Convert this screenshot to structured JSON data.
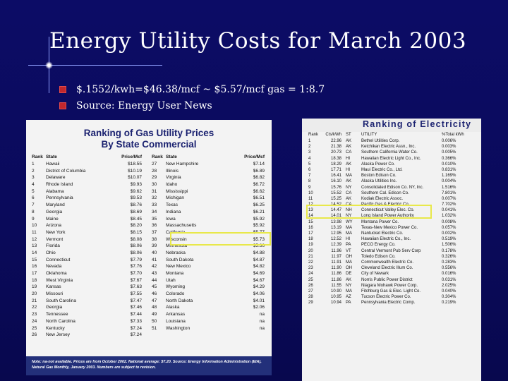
{
  "slide": {
    "title": "Energy Utility Costs for March 2003",
    "bullets": [
      "$.1552/kwh=$46.38/mcf ~ $5.57/mcf gas = 1:8.7",
      "Source: Energy User News"
    ]
  },
  "gas_table": {
    "heading_line1": "Ranking of Gas Utility Prices",
    "heading_line2": "By State Commercial",
    "headers": [
      "Rank",
      "State",
      "Price/Mcf",
      "Rank",
      "State",
      "Price/Mcf"
    ],
    "left_rows": [
      [
        "1",
        "Hawaii",
        "$18.55"
      ],
      [
        "2",
        "District of Columbia",
        "$10.19"
      ],
      [
        "3",
        "Delaware",
        "$10.07"
      ],
      [
        "4",
        "Rhode Island",
        "$9.93"
      ],
      [
        "5",
        "Alabama",
        "$9.62"
      ],
      [
        "6",
        "Pennsylvania",
        "$9.53"
      ],
      [
        "7",
        "Maryland",
        "$8.76"
      ],
      [
        "8",
        "Georgia",
        "$8.69"
      ],
      [
        "9",
        "Maine",
        "$8.45"
      ],
      [
        "10",
        "Arizona",
        "$8.20"
      ],
      [
        "11",
        "New York",
        "$8.15"
      ],
      [
        "12",
        "Vermont",
        "$8.08"
      ],
      [
        "13",
        "Florida",
        "$8.06"
      ],
      [
        "14",
        "Ohio",
        "$8.06"
      ],
      [
        "15",
        "Connecticut",
        "$7.79"
      ],
      [
        "16",
        "Nevada",
        "$7.76"
      ],
      [
        "17",
        "Oklahoma",
        "$7.70"
      ],
      [
        "18",
        "West Virginia",
        "$7.67"
      ],
      [
        "19",
        "Kansas",
        "$7.63"
      ],
      [
        "20",
        "Missouri",
        "$7.55"
      ],
      [
        "21",
        "South Carolina",
        "$7.47"
      ],
      [
        "22",
        "Georgia",
        "$7.46"
      ],
      [
        "23",
        "Tennessee",
        "$7.44"
      ],
      [
        "24",
        "North Carolina",
        "$7.33"
      ],
      [
        "25",
        "Kentucky",
        "$7.24"
      ],
      [
        "26",
        "New Jersey",
        "$7.24"
      ]
    ],
    "right_rows": [
      [
        "27",
        "New Hampshire",
        "$7.14"
      ],
      [
        "28",
        "Illinois",
        "$6.89"
      ],
      [
        "29",
        "Virginia",
        "$6.82"
      ],
      [
        "30",
        "Idaho",
        "$6.72"
      ],
      [
        "31",
        "Mississippi",
        "$6.62"
      ],
      [
        "32",
        "Michigan",
        "$6.51"
      ],
      [
        "33",
        "Texas",
        "$6.25"
      ],
      [
        "34",
        "Indiana",
        "$6.21"
      ],
      [
        "35",
        "Iowa",
        "$5.92"
      ],
      [
        "36",
        "Massachusetts",
        "$5.92"
      ],
      [
        "37",
        "California",
        "$5.77"
      ],
      [
        "38",
        "Wisconsin",
        "$5.73"
      ],
      [
        "39",
        "Minnesota",
        "$5.36"
      ],
      [
        "40",
        "Nebraska",
        "$4.88"
      ],
      [
        "41",
        "South Dakota",
        "$4.87"
      ],
      [
        "42",
        "New Mexico",
        "$4.82"
      ],
      [
        "43",
        "Montana",
        "$4.69"
      ],
      [
        "44",
        "Utah",
        "$4.67"
      ],
      [
        "45",
        "Wyoming",
        "$4.29"
      ],
      [
        "46",
        "Colorado",
        "$4.06"
      ],
      [
        "47",
        "North Dakota",
        "$4.01"
      ],
      [
        "48",
        "Alaska",
        "$2.06"
      ],
      [
        "49",
        "Arkansas",
        "na"
      ],
      [
        "50",
        "Louisiana",
        "na"
      ],
      [
        "51",
        "Washington",
        "na"
      ],
      [
        "",
        "",
        ""
      ]
    ],
    "note": "Note: na-not available. Prices are from October 2002. National average: $7.20. Source: Energy Information Administration (EIA), Natural Gas Monthly, January 2003. Numbers are subject to revision."
  },
  "elec_table": {
    "heading": "Ranking of Electricity",
    "headers": [
      "Rank",
      "Cts/kWh",
      "ST",
      "UTILITY",
      "%Total kWh"
    ],
    "rows": [
      [
        "1",
        "22.96",
        "AK",
        "Bethel Utilities Corp.",
        "0.006%"
      ],
      [
        "2",
        "21.38",
        "AK",
        "Ketchikan Electric Assn., Inc.",
        "0.003%"
      ],
      [
        "3",
        "20.73",
        "CA",
        "Southern California Water Co.",
        "0.005%"
      ],
      [
        "4",
        "18.38",
        "HI",
        "Hawaiian Electric Light Co., Inc.",
        "0.366%"
      ],
      [
        "5",
        "18.29",
        "AK",
        "Alaska Power Co.",
        "0.010%"
      ],
      [
        "6",
        "17.71",
        "HI",
        "Maui Electric Co., Ltd.",
        "0.831%"
      ],
      [
        "7",
        "16.41",
        "MA",
        "Boston Edison Co.",
        "1.169%"
      ],
      [
        "8",
        "16.10",
        "AK",
        "Alaska Utilities Inc.",
        "0.004%"
      ],
      [
        "9",
        "15.76",
        "NY",
        "Consolidated Edison Co. NY, Inc.",
        "1.516%"
      ],
      [
        "10",
        "15.52",
        "CA",
        "Southern Cal. Edison Co.",
        "7.801%"
      ],
      [
        "11",
        "15.25",
        "AK",
        "Kodiak Electric Assoc.",
        "0.007%"
      ],
      [
        "12",
        "14.52",
        "CA",
        "Pacific Gas & Electric Co.",
        "7.702%"
      ],
      [
        "13",
        "14.47",
        "NH",
        "Connecticut Valley Elec. Co.",
        "0.041%"
      ],
      [
        "14",
        "14.01",
        "NY",
        "Long Island Power Authority",
        "1.032%"
      ],
      [
        "15",
        "13.98",
        "WY",
        "Montana Power Co.",
        "0.008%"
      ],
      [
        "16",
        "13.19",
        "MA",
        "Texas-New Mexico Power Co.",
        "0.057%"
      ],
      [
        "17",
        "12.95",
        "MA",
        "Nantucket Electric Co.",
        "0.002%"
      ],
      [
        "18",
        "12.52",
        "HI",
        "Hawaiian Electric Co., Inc.",
        "0.519%"
      ],
      [
        "19",
        "12.39",
        "PA",
        "PECO Energy Co.",
        "1.506%"
      ],
      [
        "20",
        "11.96",
        "VT",
        "Central Vermont Pub Serv Corp",
        "0.178%"
      ],
      [
        "21",
        "11.97",
        "OH",
        "Toledo Edison Co.",
        "0.326%"
      ],
      [
        "22",
        "11.91",
        "MA",
        "Commonwealth Electric Co.",
        "0.283%"
      ],
      [
        "23",
        "11.90",
        "OH",
        "Cleveland Electric Illum Co.",
        "0.556%"
      ],
      [
        "24",
        "11.86",
        "DE",
        "City of Newark",
        "0.016%"
      ],
      [
        "25",
        "11.86",
        "AK",
        "Norris Public Power District",
        "0.031%"
      ],
      [
        "26",
        "11.55",
        "NY",
        "Niagara Mohawk Power Corp.",
        "2.025%"
      ],
      [
        "27",
        "10.90",
        "MA",
        "Fitchburg Gas & Elec. Light Co.",
        "0.040%"
      ],
      [
        "28",
        "10.95",
        "AZ",
        "Tucson Electric Power Co.",
        "0.304%"
      ],
      [
        "29",
        "10.94",
        "PA",
        "Pennsylvania Electric Comp.",
        "0.219%"
      ]
    ]
  }
}
